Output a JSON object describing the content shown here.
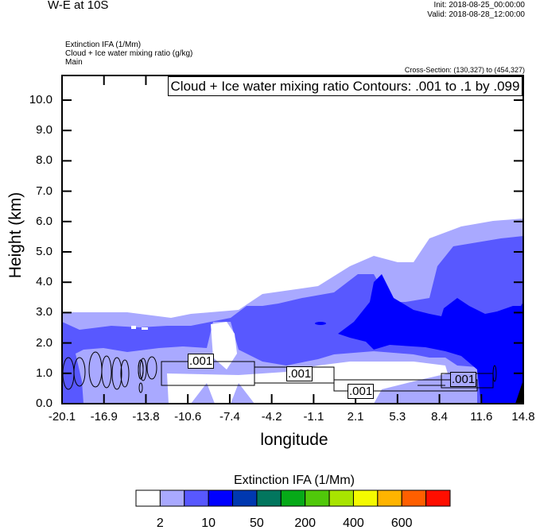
{
  "header": {
    "title": "W-E at 10S",
    "init": "Init: 2018-08-25_00:00:00",
    "valid": "Valid: 2018-08-28_12:00:00",
    "fields": [
      "Extinction IFA   (1/Mm)",
      "Cloud + Ice water mixing ratio   (g/kg)",
      "Main"
    ],
    "cross_section": "Cross-Section: (130,327) to (454,327)"
  },
  "chart_data": {
    "type": "heatmap",
    "title": "W-E at 10S",
    "xlabel": "longitude",
    "ylabel": "Height (km)",
    "xlim": [
      -20.1,
      14.8
    ],
    "ylim": [
      0,
      10.8
    ],
    "x_ticks": [
      "-20.1",
      "-16.9",
      "-13.8",
      "-10.6",
      "-7.4",
      "-4.2",
      "-1.1",
      "2.1",
      "5.3",
      "8.4",
      "11.6",
      "14.8"
    ],
    "y_ticks": [
      "0.0",
      "1.0",
      "2.0",
      "3.0",
      "4.0",
      "5.0",
      "6.0",
      "7.0",
      "8.0",
      "9.0",
      "10.0"
    ],
    "contour_legend": "Cloud + Ice water mixing ratio Contours: .001 to .1 by .099",
    "contour_labels": [
      ".001",
      ".001",
      ".001",
      ".001"
    ],
    "colorbar": {
      "title": "Extinction IFA  (1/Mm)",
      "labels": [
        "2",
        "10",
        "50",
        "200",
        "400",
        "600"
      ],
      "colors": [
        "#FFFFFF",
        "#A9A9FF",
        "#5858FF",
        "#0000FF",
        "#0038B0",
        "#02765E",
        "#06AA18",
        "#50C80A",
        "#A8E400",
        "#F4FA00",
        "#FFB400",
        "#FF5F00",
        "#FF0E00"
      ]
    },
    "field_colors": {
      "light": "#A9A9FF",
      "medium": "#5858FF",
      "blue": "#0000FF",
      "dark": "#000000"
    }
  }
}
